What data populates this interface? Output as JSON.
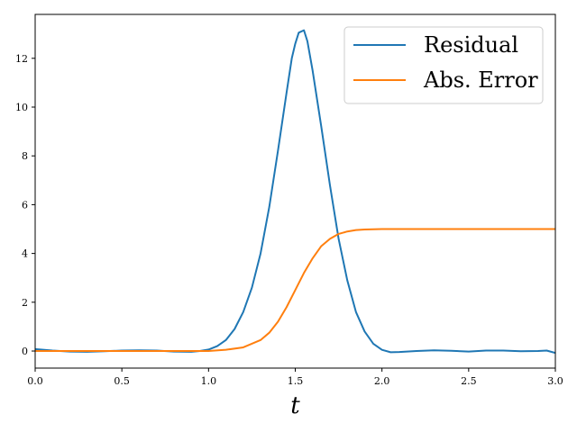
{
  "chart_data": {
    "type": "line",
    "title": "",
    "xlabel": "t",
    "ylabel": "",
    "xlim": [
      0,
      3
    ],
    "ylim": [
      -0.7,
      13.8
    ],
    "x_ticks": [
      0,
      0.5,
      1,
      1.5,
      2,
      2.5,
      3
    ],
    "x_tick_labels": [
      "0.0",
      "0.5",
      "1.0",
      "1.5",
      "2.0",
      "2.5",
      "3.0"
    ],
    "y_ticks": [
      0,
      2,
      4,
      6,
      8,
      10,
      12
    ],
    "y_tick_labels": [
      "0",
      "2",
      "4",
      "6",
      "8",
      "10",
      "12"
    ],
    "grid": false,
    "legend_position": "top-right",
    "series": [
      {
        "name": "Residual",
        "color": "#1f77b4",
        "points": [
          [
            0.0,
            0.08
          ],
          [
            0.1,
            0.02
          ],
          [
            0.2,
            -0.02
          ],
          [
            0.3,
            -0.03
          ],
          [
            0.4,
            -0.01
          ],
          [
            0.5,
            0.02
          ],
          [
            0.6,
            0.03
          ],
          [
            0.7,
            0.02
          ],
          [
            0.8,
            -0.02
          ],
          [
            0.9,
            -0.03
          ],
          [
            0.95,
            0.0
          ],
          [
            1.0,
            0.06
          ],
          [
            1.05,
            0.2
          ],
          [
            1.1,
            0.45
          ],
          [
            1.15,
            0.9
          ],
          [
            1.2,
            1.6
          ],
          [
            1.25,
            2.6
          ],
          [
            1.3,
            4.0
          ],
          [
            1.35,
            5.9
          ],
          [
            1.4,
            8.2
          ],
          [
            1.45,
            10.6
          ],
          [
            1.48,
            12.0
          ],
          [
            1.5,
            12.6
          ],
          [
            1.52,
            13.05
          ],
          [
            1.55,
            13.15
          ],
          [
            1.57,
            12.7
          ],
          [
            1.6,
            11.5
          ],
          [
            1.65,
            9.2
          ],
          [
            1.7,
            6.8
          ],
          [
            1.75,
            4.6
          ],
          [
            1.8,
            2.9
          ],
          [
            1.85,
            1.6
          ],
          [
            1.9,
            0.8
          ],
          [
            1.95,
            0.3
          ],
          [
            2.0,
            0.05
          ],
          [
            2.05,
            -0.05
          ],
          [
            2.1,
            -0.04
          ],
          [
            2.2,
            0.0
          ],
          [
            2.3,
            0.03
          ],
          [
            2.4,
            0.01
          ],
          [
            2.5,
            -0.02
          ],
          [
            2.6,
            0.02
          ],
          [
            2.7,
            0.02
          ],
          [
            2.8,
            -0.01
          ],
          [
            2.9,
            0.0
          ],
          [
            2.95,
            0.02
          ],
          [
            3.0,
            -0.08
          ]
        ]
      },
      {
        "name": "Abs. Error",
        "color": "#ff7f0e",
        "points": [
          [
            0.0,
            0.0
          ],
          [
            0.5,
            0.0
          ],
          [
            1.0,
            0.0
          ],
          [
            1.1,
            0.05
          ],
          [
            1.2,
            0.15
          ],
          [
            1.3,
            0.45
          ],
          [
            1.35,
            0.75
          ],
          [
            1.4,
            1.2
          ],
          [
            1.45,
            1.8
          ],
          [
            1.5,
            2.5
          ],
          [
            1.55,
            3.2
          ],
          [
            1.6,
            3.8
          ],
          [
            1.65,
            4.3
          ],
          [
            1.7,
            4.6
          ],
          [
            1.75,
            4.8
          ],
          [
            1.8,
            4.9
          ],
          [
            1.85,
            4.96
          ],
          [
            1.9,
            4.98
          ],
          [
            2.0,
            5.0
          ],
          [
            2.5,
            5.0
          ],
          [
            3.0,
            5.0
          ]
        ]
      }
    ]
  }
}
